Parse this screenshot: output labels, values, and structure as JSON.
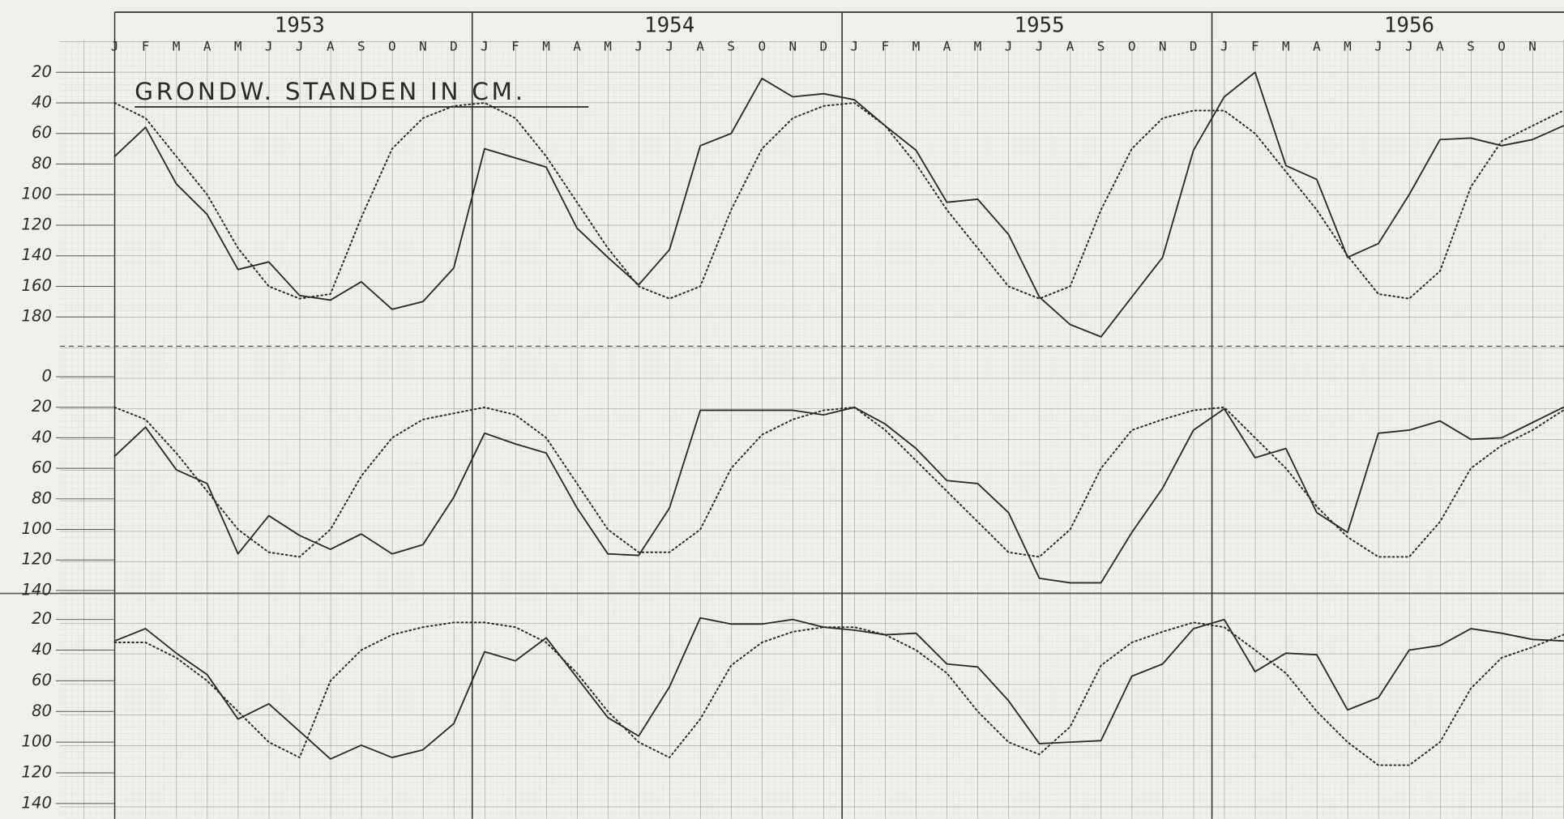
{
  "chart_data": {
    "type": "line",
    "title": "GRONDW. STANDEN IN CM.",
    "groups": [
      "1953",
      "1954",
      "1955",
      "1956"
    ],
    "categories": [
      "J",
      "F",
      "M",
      "A",
      "M",
      "J",
      "J",
      "A",
      "S",
      "O",
      "N",
      "D",
      "J",
      "F",
      "M",
      "A",
      "M",
      "J",
      "J",
      "A",
      "S",
      "O",
      "N",
      "D",
      "J",
      "F",
      "M",
      "A",
      "M",
      "J",
      "J",
      "A",
      "S",
      "O",
      "N",
      "D",
      "J",
      "F",
      "M",
      "A",
      "M",
      "J",
      "J",
      "A",
      "S",
      "O",
      "N",
      null
    ],
    "y_inverted": true,
    "grid": true,
    "panels": [
      {
        "ylim": [
          10,
          190
        ],
        "yticks": [
          20,
          40,
          60,
          80,
          100,
          120,
          140,
          160,
          180
        ],
        "series": [
          {
            "color": "#2a2a2a",
            "dash": "solid",
            "values": [
              75,
              56,
              93,
              113,
              149,
              144,
              166,
              169,
              157,
              175,
              170,
              148,
              70,
              76,
              82,
              122,
              141,
              159,
              136,
              68,
              60,
              24,
              36,
              34,
              38,
              55,
              71,
              105,
              103,
              126,
              167,
              185,
              193,
              167,
              141,
              71,
              36,
              20,
              81,
              90,
              141,
              132,
              100,
              64,
              63,
              68,
              64,
              55
            ]
          },
          {
            "color": "#2a2a2a",
            "dash": "dotted",
            "values": [
              40,
              50,
              75,
              100,
              135,
              160,
              168,
              165,
              115,
              70,
              50,
              42,
              40,
              50,
              75,
              105,
              135,
              160,
              168,
              160,
              110,
              70,
              50,
              42,
              40,
              55,
              80,
              110,
              135,
              160,
              168,
              160,
              110,
              70,
              50,
              45,
              45,
              60,
              85,
              110,
              140,
              165,
              168,
              150,
              95,
              65,
              55,
              45
            ]
          }
        ]
      },
      {
        "ylim": [
          -20,
          140
        ],
        "yticks": [
          0,
          20,
          40,
          60,
          80,
          100,
          120,
          140
        ],
        "series": [
          {
            "color": "#2a2a2a",
            "dash": "solid",
            "values": [
              52,
              33,
              61,
              70,
              116,
              91,
              104,
              113,
              103,
              116,
              110,
              79,
              37,
              44,
              50,
              86,
              116,
              117,
              86,
              22,
              22,
              22,
              22,
              25,
              20,
              31,
              47,
              68,
              70,
              89,
              132,
              135,
              135,
              102,
              73,
              35,
              21,
              53,
              47,
              89,
              102,
              37,
              35,
              29,
              41,
              40,
              30,
              20
            ]
          },
          {
            "color": "#2a2a2a",
            "dash": "dotted",
            "values": [
              20,
              28,
              50,
              75,
              100,
              115,
              118,
              100,
              65,
              40,
              28,
              24,
              20,
              25,
              40,
              70,
              100,
              115,
              115,
              100,
              60,
              38,
              28,
              22,
              20,
              35,
              55,
              75,
              95,
              115,
              118,
              100,
              60,
              35,
              28,
              22,
              20,
              40,
              60,
              85,
              105,
              118,
              118,
              95,
              60,
              45,
              35,
              22
            ]
          }
        ]
      },
      {
        "ylim": [
          5,
          150
        ],
        "yticks": [
          20,
          40,
          60,
          80,
          100,
          120,
          140
        ],
        "series": [
          {
            "color": "#2a2a2a",
            "dash": "solid",
            "values": [
              34,
              26,
              42,
              56,
              85,
              75,
              93,
              111,
              102,
              110,
              105,
              88,
              41,
              47,
              32,
              58,
              84,
              96,
              64,
              19,
              23,
              23,
              20,
              25,
              27,
              30,
              29,
              49,
              51,
              73,
              101,
              100,
              99,
              57,
              49,
              26,
              20,
              54,
              42,
              43,
              79,
              71,
              40,
              37,
              26,
              29,
              33,
              34
            ]
          },
          {
            "color": "#2a2a2a",
            "dash": "dotted",
            "values": [
              35,
              35,
              45,
              60,
              80,
              100,
              110,
              60,
              40,
              30,
              25,
              22,
              22,
              25,
              35,
              55,
              80,
              100,
              110,
              85,
              50,
              35,
              28,
              25,
              25,
              30,
              40,
              55,
              80,
              100,
              108,
              90,
              50,
              35,
              28,
              22,
              25,
              40,
              55,
              80,
              100,
              115,
              115,
              100,
              65,
              45,
              38,
              30
            ]
          }
        ]
      }
    ]
  }
}
